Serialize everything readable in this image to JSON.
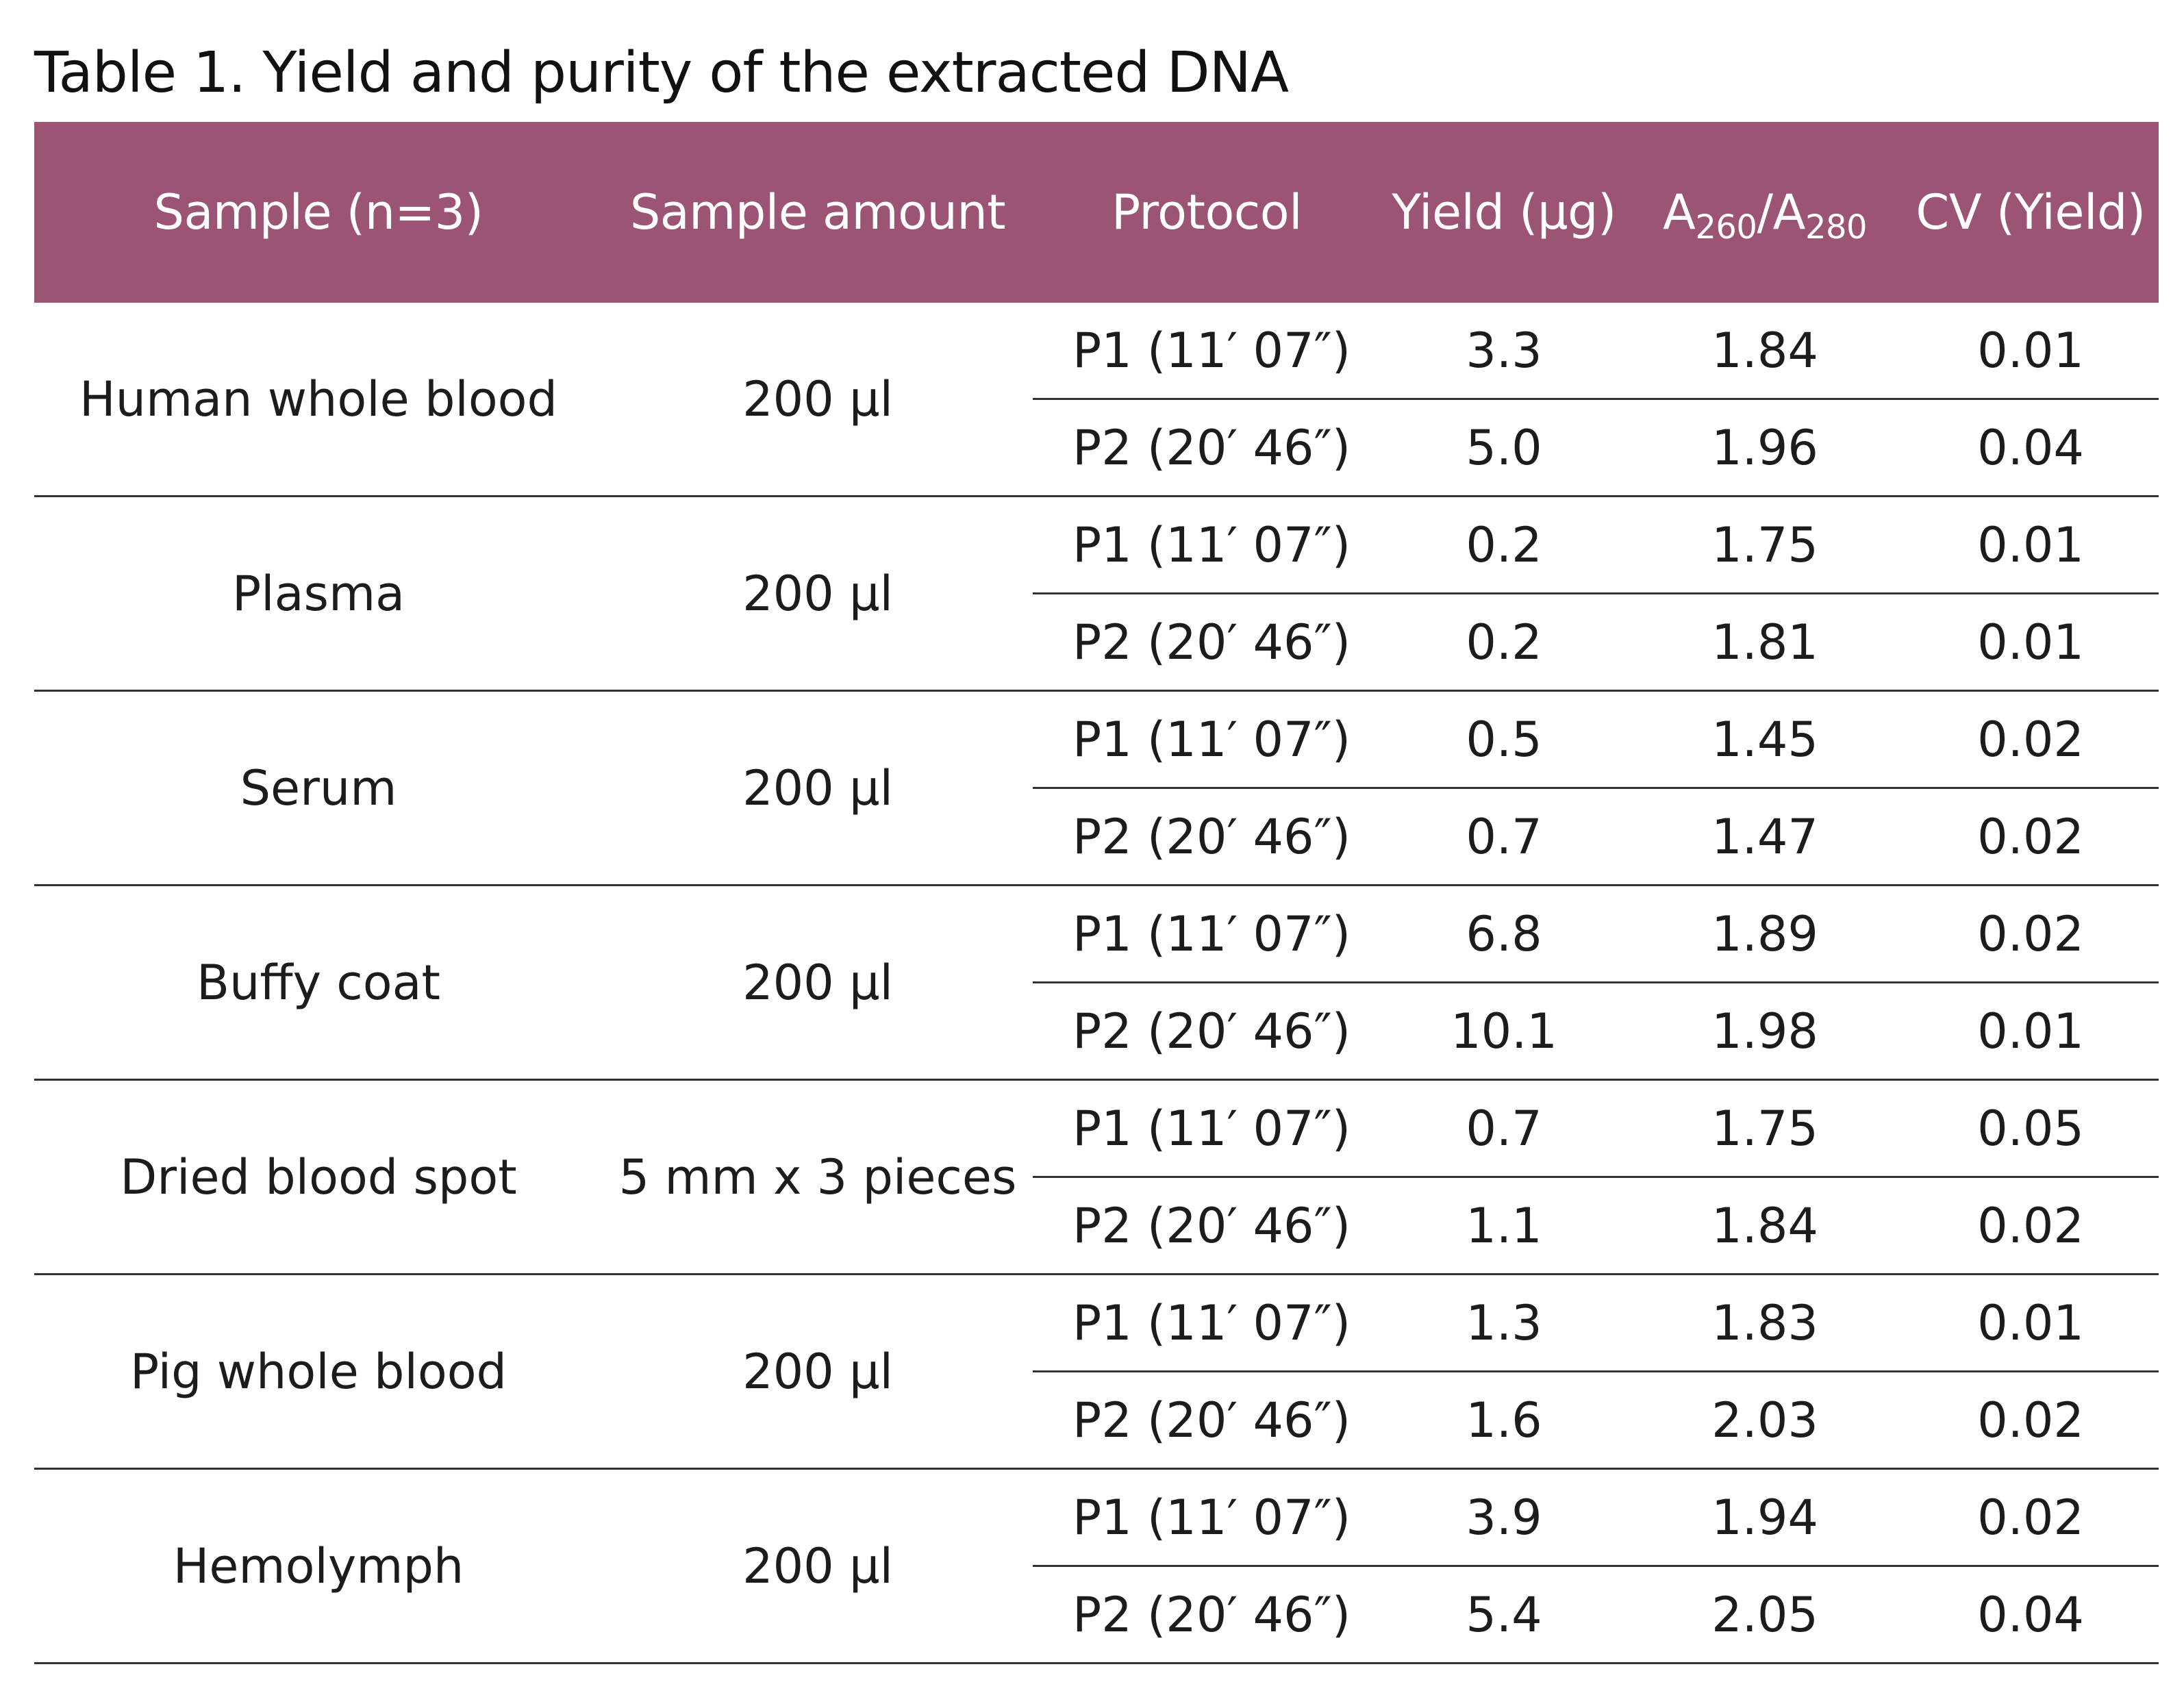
{
  "title": "Table 1. Yield and purity of the extracted DNA",
  "header": {
    "sample": "Sample (n=3)",
    "amount": "Sample amount",
    "protocol": "Protocol",
    "yield": "Yield (μg)",
    "ratio_a": "A",
    "ratio_a_sub": "260",
    "ratio_sep": "/A",
    "ratio_b_sub": "280",
    "cv": "CV (Yield)"
  },
  "colors": {
    "header_bg": "#9b5473",
    "header_text": "#ffffff",
    "rule": "#333333"
  },
  "rows": [
    {
      "sample": "Human whole blood",
      "amount": "200 μl",
      "p1": {
        "protocol": "P1 (11′ 07″)",
        "yield": "3.3",
        "ratio": "1.84",
        "cv": "0.01"
      },
      "p2": {
        "protocol": "P2 (20′ 46″)",
        "yield": "5.0",
        "ratio": "1.96",
        "cv": "0.04"
      }
    },
    {
      "sample": "Plasma",
      "amount": "200 μl",
      "p1": {
        "protocol": "P1 (11′ 07″)",
        "yield": "0.2",
        "ratio": "1.75",
        "cv": "0.01"
      },
      "p2": {
        "protocol": "P2 (20′ 46″)",
        "yield": "0.2",
        "ratio": "1.81",
        "cv": "0.01"
      }
    },
    {
      "sample": "Serum",
      "amount": "200 μl",
      "p1": {
        "protocol": "P1 (11′ 07″)",
        "yield": "0.5",
        "ratio": "1.45",
        "cv": "0.02"
      },
      "p2": {
        "protocol": "P2 (20′ 46″)",
        "yield": "0.7",
        "ratio": "1.47",
        "cv": "0.02"
      }
    },
    {
      "sample": "Buffy coat",
      "amount": "200 μl",
      "p1": {
        "protocol": "P1 (11′ 07″)",
        "yield": "6.8",
        "ratio": "1.89",
        "cv": "0.02"
      },
      "p2": {
        "protocol": "P2 (20′ 46″)",
        "yield": "10.1",
        "ratio": "1.98",
        "cv": "0.01"
      }
    },
    {
      "sample": "Dried blood spot",
      "amount": "5 mm x 3 pieces",
      "p1": {
        "protocol": "P1 (11′ 07″)",
        "yield": "0.7",
        "ratio": "1.75",
        "cv": "0.05"
      },
      "p2": {
        "protocol": "P2 (20′ 46″)",
        "yield": "1.1",
        "ratio": "1.84",
        "cv": "0.02"
      }
    },
    {
      "sample": "Pig whole blood",
      "amount": "200 μl",
      "p1": {
        "protocol": "P1 (11′ 07″)",
        "yield": "1.3",
        "ratio": "1.83",
        "cv": "0.01"
      },
      "p2": {
        "protocol": "P2 (20′ 46″)",
        "yield": "1.6",
        "ratio": "2.03",
        "cv": "0.02"
      }
    },
    {
      "sample": "Hemolymph",
      "amount": "200 μl",
      "p1": {
        "protocol": "P1 (11′ 07″)",
        "yield": "3.9",
        "ratio": "1.94",
        "cv": "0.02"
      },
      "p2": {
        "protocol": "P2 (20′ 46″)",
        "yield": "5.4",
        "ratio": "2.05",
        "cv": "0.04"
      }
    }
  ]
}
